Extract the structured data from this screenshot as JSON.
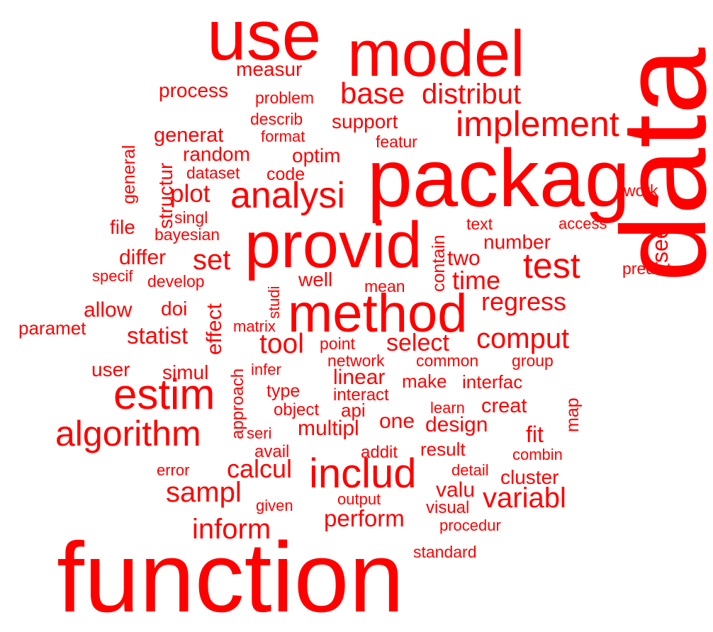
{
  "wordcloud": {
    "color": "#ff0000",
    "words": [
      {
        "text": "use"
      },
      {
        "text": "model"
      },
      {
        "text": "packag"
      },
      {
        "text": "data"
      },
      {
        "text": "function"
      },
      {
        "text": "provid"
      },
      {
        "text": "method"
      },
      {
        "text": "estim"
      },
      {
        "text": "implement"
      },
      {
        "text": "analysi"
      },
      {
        "text": "algorithm"
      },
      {
        "text": "includ"
      },
      {
        "text": "test"
      },
      {
        "text": "base"
      },
      {
        "text": "distribut"
      },
      {
        "text": "measur"
      },
      {
        "text": "process"
      },
      {
        "text": "problem"
      },
      {
        "text": "describ"
      },
      {
        "text": "format"
      },
      {
        "text": "support"
      },
      {
        "text": "featur"
      },
      {
        "text": "generat"
      },
      {
        "text": "random"
      },
      {
        "text": "optim"
      },
      {
        "text": "dataset"
      },
      {
        "text": "code"
      },
      {
        "text": "plot"
      },
      {
        "text": "singl"
      },
      {
        "text": "bayesian"
      },
      {
        "text": "file"
      },
      {
        "text": "structur"
      },
      {
        "text": "general"
      },
      {
        "text": "work"
      },
      {
        "text": "text"
      },
      {
        "text": "access"
      },
      {
        "text": "see"
      },
      {
        "text": "number"
      },
      {
        "text": "contain"
      },
      {
        "text": "two"
      },
      {
        "text": "predict"
      },
      {
        "text": "differ"
      },
      {
        "text": "set"
      },
      {
        "text": "specif"
      },
      {
        "text": "develop"
      },
      {
        "text": "well"
      },
      {
        "text": "mean"
      },
      {
        "text": "time"
      },
      {
        "text": "regress"
      },
      {
        "text": "allow"
      },
      {
        "text": "doi"
      },
      {
        "text": "studi"
      },
      {
        "text": "paramet"
      },
      {
        "text": "statist"
      },
      {
        "text": "effect"
      },
      {
        "text": "matrix"
      },
      {
        "text": "tool"
      },
      {
        "text": "point"
      },
      {
        "text": "select"
      },
      {
        "text": "comput"
      },
      {
        "text": "user"
      },
      {
        "text": "simul"
      },
      {
        "text": "approach"
      },
      {
        "text": "infer"
      },
      {
        "text": "network"
      },
      {
        "text": "common"
      },
      {
        "text": "group"
      },
      {
        "text": "linear"
      },
      {
        "text": "make"
      },
      {
        "text": "interfac"
      },
      {
        "text": "type"
      },
      {
        "text": "interact"
      },
      {
        "text": "object"
      },
      {
        "text": "api"
      },
      {
        "text": "learn"
      },
      {
        "text": "creat"
      },
      {
        "text": "map"
      },
      {
        "text": "seri"
      },
      {
        "text": "multipl"
      },
      {
        "text": "one"
      },
      {
        "text": "design"
      },
      {
        "text": "fit"
      },
      {
        "text": "avail"
      },
      {
        "text": "addit"
      },
      {
        "text": "result"
      },
      {
        "text": "combin"
      },
      {
        "text": "error"
      },
      {
        "text": "calcul"
      },
      {
        "text": "detail"
      },
      {
        "text": "cluster"
      },
      {
        "text": "sampl"
      },
      {
        "text": "valu"
      },
      {
        "text": "variabl"
      },
      {
        "text": "given"
      },
      {
        "text": "output"
      },
      {
        "text": "visual"
      },
      {
        "text": "inform"
      },
      {
        "text": "perform"
      },
      {
        "text": "procedur"
      },
      {
        "text": "standard"
      }
    ]
  }
}
